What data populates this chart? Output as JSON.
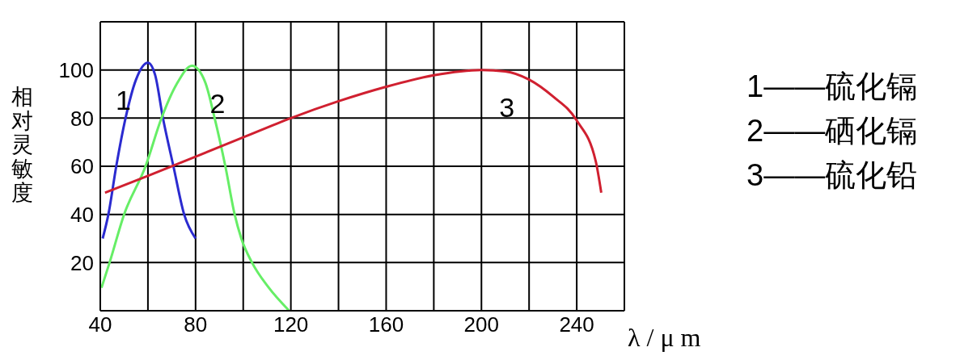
{
  "chart_data": {
    "type": "line",
    "ylabel": "相对灵敏度",
    "xlabel": "λ / μ m",
    "xlim": [
      40,
      260
    ],
    "xticks": [
      40,
      {
        "value": 60,
        "label": null
      },
      80,
      {
        "value": 100,
        "label": null
      },
      120,
      {
        "value": 140,
        "label": null
      },
      160,
      {
        "value": 180,
        "label": null
      },
      200,
      {
        "value": 220,
        "label": null
      },
      240,
      {
        "value": 260,
        "label": null
      }
    ],
    "ylim": [
      0,
      120
    ],
    "yticks": [
      {
        "value": 0,
        "label": null
      },
      20,
      40,
      60,
      80,
      100,
      {
        "value": 120,
        "label": null
      }
    ],
    "grid": true,
    "marker": "none",
    "line_style": "solid",
    "annotations": [
      "1——硫化镉",
      "2——硒化镉",
      "3——硫化铅"
    ],
    "series": [
      {
        "name": "1",
        "color": "#2b2bd0",
        "x": [
          41,
          43.4,
          46.7,
          50.6,
          55,
          60,
          63,
          66.3,
          70.7,
          75.2,
          80
        ],
        "values": [
          30,
          40,
          60,
          80,
          96,
          103,
          98,
          80,
          60,
          40,
          30
        ]
      },
      {
        "name": "2",
        "color": "#66ee66",
        "x": [
          40.5,
          43.9,
          50,
          59,
          65.7,
          72,
          78.5,
          84,
          88,
          92.5,
          96.4,
          99.2,
          103.7,
          110.4,
          119.3
        ],
        "values": [
          9.5,
          20,
          40,
          60,
          80,
          94,
          101.7,
          95,
          80,
          60,
          40,
          30,
          20,
          10,
          0
        ]
      },
      {
        "name": "3",
        "color": "#d02030",
        "x": [
          42,
          60,
          80,
          100,
          120,
          140,
          160,
          180,
          200,
          210,
          220,
          230,
          240,
          248,
          250.3
        ],
        "values": [
          49,
          56,
          64,
          72,
          80,
          87,
          93,
          97.8,
          100,
          99.4,
          96,
          89,
          79,
          62,
          49
        ]
      }
    ]
  }
}
